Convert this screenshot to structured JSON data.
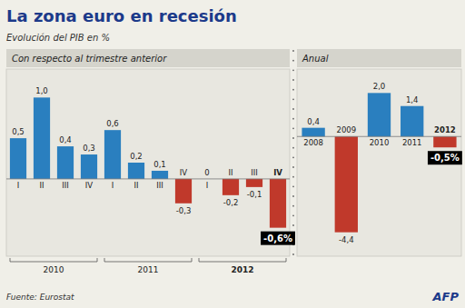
{
  "title": "La zona euro en recesión",
  "subtitle": "Evolución del PIB en %",
  "source": "Fuente: Eurostat",
  "credit": "AFP",
  "chart_data": [
    {
      "type": "bar",
      "title": "Con respecto al trimestre anterior",
      "categories": [
        "I",
        "II",
        "III",
        "IV",
        "I",
        "II",
        "III",
        "IV",
        "I",
        "II",
        "III",
        "IV"
      ],
      "values": [
        0.5,
        1.0,
        0.4,
        0.3,
        0.6,
        0.2,
        0.1,
        -0.3,
        0.0,
        -0.2,
        -0.1,
        -0.6
      ],
      "value_labels": [
        "0,5",
        "1,0",
        "0,4",
        "0,3",
        "0,6",
        "0,2",
        "0,1",
        "-0,3",
        "0",
        "-0,2",
        "-0,1",
        "-0,6%"
      ],
      "colors": [
        "#2a7fbf",
        "#2a7fbf",
        "#2a7fbf",
        "#2a7fbf",
        "#2a7fbf",
        "#2a7fbf",
        "#2a7fbf",
        "#c0392b",
        "#c0392b",
        "#c0392b",
        "#c0392b",
        "#c0392b"
      ],
      "annotations": [
        "2010",
        "2011",
        "2012"
      ],
      "ylim": [
        -0.95,
        1.35
      ],
      "data_labels": true,
      "tick_labels": "x"
    },
    {
      "type": "bar",
      "title": "Anual",
      "categories": [
        "2008",
        "2009",
        "2010",
        "2011",
        "2012"
      ],
      "values": [
        0.4,
        -4.4,
        2.0,
        1.4,
        -0.5
      ],
      "value_labels": [
        "0,4",
        "-4,4",
        "2,0",
        "1,4",
        "-0,5%"
      ],
      "colors": [
        "#2a7fbf",
        "#c0392b",
        "#2a7fbf",
        "#2a7fbf",
        "#c0392b"
      ],
      "ylim": [
        -5.5,
        3.1
      ],
      "data_labels": true,
      "tick_labels": "x"
    }
  ]
}
